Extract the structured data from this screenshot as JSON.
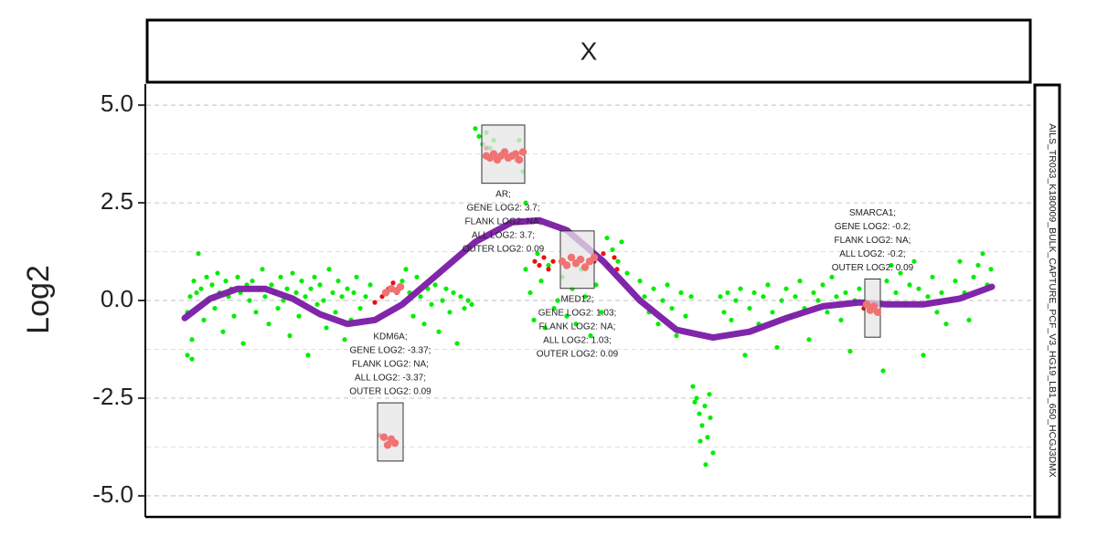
{
  "chart_data": {
    "type": "scatter",
    "strip_title": "X",
    "side_label": "AILS_TR033_K180009_BULK_CAPTURE_PCF_V3_HG19_LB1_650_HCGJ3DMX",
    "y_label": "Log2",
    "xlim": [
      0,
      968
    ],
    "ylim": [
      -5.54,
      5.54
    ],
    "yticks": [
      {
        "value": 5,
        "label": "5.0"
      },
      {
        "value": 2.5,
        "label": "2.5"
      },
      {
        "value": 0,
        "label": "0.0"
      },
      {
        "value": -2.5,
        "label": "-2.5"
      },
      {
        "value": -5,
        "label": "-5.0"
      }
    ],
    "minor_yticks": [
      3.75,
      1.25,
      -1.25,
      -3.75
    ],
    "grid": true,
    "points": [
      {
        "color": "#00ee00",
        "x": [
          45,
          45,
          48,
          50,
          50,
          52,
          55,
          57,
          60,
          63,
          66,
          68,
          72,
          75,
          78,
          80,
          84,
          87,
          90,
          93,
          96,
          100,
          103,
          106,
          110,
          113,
          116,
          120,
          124,
          127,
          130,
          134,
          137,
          140,
          144,
          147,
          150,
          154,
          157,
          160,
          164,
          167,
          170,
          174,
          177,
          180,
          184,
          187,
          190,
          194,
          197,
          200,
          204,
          207,
          210,
          214,
          217,
          220,
          224,
          227,
          230,
          234,
          240,
          245,
          280,
          284,
          288,
          292,
          296,
          300,
          304,
          308,
          312,
          316,
          320,
          324,
          328,
          332,
          336,
          340,
          344,
          348,
          352,
          356,
          360,
          364,
          368,
          372,
          376,
          380,
          408,
          412,
          415,
          415,
          420,
          424,
          428,
          432,
          436,
          440,
          446,
          450,
          455,
          460,
          466,
          470,
          476,
          480,
          486,
          492,
          498,
          504,
          510,
          516,
          520,
          526,
          540,
          545,
          550,
          555,
          560,
          565,
          570,
          575,
          580,
          585,
          590,
          596,
          598,
          602,
          605,
          608,
          611,
          614,
          617,
          620,
          612,
          606,
          600,
          616,
          628,
          632,
          636,
          640,
          645,
          650,
          655,
          660,
          665,
          670,
          675,
          680,
          685,
          690,
          695,
          700,
          705,
          710,
          715,
          720,
          725,
          730,
          735,
          740,
          745,
          750,
          755,
          760,
          765,
          770,
          775,
          780,
          785,
          806,
          810,
          815,
          820,
          825,
          830,
          835,
          840,
          845,
          850,
          855,
          860,
          865,
          870,
          875,
          880,
          885,
          890,
          895,
          900,
          905,
          910,
          915,
          920,
          924
        ],
        "y": [
          -0.3,
          -1.4,
          0.1,
          -1.0,
          -1.5,
          0.5,
          0.2,
          1.2,
          0.3,
          -0.5,
          0.6,
          0.0,
          0.4,
          -0.2,
          0.7,
          0.2,
          -0.8,
          0.5,
          0.1,
          0.3,
          -0.4,
          0.6,
          0.2,
          -1.1,
          0.4,
          0.0,
          0.5,
          -0.3,
          0.3,
          0.8,
          0.1,
          -0.6,
          0.4,
          0.2,
          -0.2,
          0.6,
          0.0,
          0.3,
          -0.9,
          0.7,
          0.2,
          -0.4,
          0.5,
          0.1,
          -1.4,
          0.3,
          0.6,
          -0.1,
          0.4,
          0.0,
          -0.7,
          0.8,
          0.2,
          -0.3,
          0.5,
          0.1,
          -1.0,
          0.3,
          -0.5,
          0.2,
          0.6,
          -0.2,
          0.1,
          0.4,
          0.5,
          0.8,
          0.2,
          -0.4,
          0.6,
          0.1,
          -0.6,
          0.3,
          -0.1,
          0.4,
          -0.8,
          0.0,
          0.3,
          -0.3,
          0.2,
          -1.1,
          0.1,
          -0.2,
          0.0,
          -0.1,
          4.4,
          4.2,
          4.0,
          4.3,
          3.9,
          4.1,
          4.1,
          3.3,
          2.5,
          0.8,
          0.2,
          -0.5,
          1.2,
          0.5,
          -0.7,
          0.9,
          -0.2,
          0.0,
          0.6,
          -0.4,
          0.3,
          -0.6,
          0.8,
          0.1,
          -0.9,
          0.4,
          -0.3,
          1.6,
          1.3,
          1.0,
          1.5,
          0.7,
          0.5,
          0.1,
          -0.3,
          0.3,
          -0.6,
          0.0,
          0.4,
          -0.2,
          -0.9,
          0.2,
          -0.4,
          0.1,
          -2.2,
          -2.5,
          -2.9,
          -3.2,
          -2.7,
          -3.5,
          -3.0,
          -3.9,
          -4.2,
          -3.6,
          -2.6,
          -2.4,
          0.1,
          -0.3,
          0.2,
          -0.5,
          0.0,
          0.3,
          -1.4,
          -0.2,
          0.2,
          -0.6,
          0.1,
          0.4,
          -0.3,
          -1.2,
          0.0,
          0.3,
          -0.4,
          0.1,
          0.5,
          -0.2,
          -1.0,
          0.2,
          0.0,
          0.4,
          -0.3,
          0.6,
          0.1,
          -0.5,
          0.2,
          -1.3,
          0.0,
          0.3,
          -0.2,
          -1.8,
          0.5,
          0.9,
          0.2,
          0.7,
          -0.1,
          0.4,
          1.0,
          0.3,
          -1.4,
          0.1,
          0.6,
          -0.3,
          0.2,
          -0.6,
          0.0,
          0.5,
          1.0,
          0.2,
          -0.5,
          0.6,
          0.9,
          1.2,
          0.4,
          0.8
        ]
      },
      {
        "color": "#e81010",
        "x": [
          250,
          258,
          265,
          270,
          274,
          278,
          425,
          430,
          435,
          440,
          445,
          480,
          490,
          500,
          505,
          512,
          515,
          372,
          405,
          255,
          785
        ],
        "y": [
          -0.05,
          0.1,
          0.3,
          0.45,
          0.2,
          0.35,
          1.0,
          0.9,
          1.1,
          0.8,
          1.0,
          0.9,
          1.0,
          1.2,
          0.9,
          1.1,
          0.8,
          3.9,
          3.6,
          -3.45,
          -0.2
        ]
      },
      {
        "color": "#f07272",
        "x": [
          372,
          376,
          380,
          384,
          388,
          392,
          396,
          400,
          404,
          408,
          412,
          455,
          460,
          465,
          470,
          475,
          480,
          485,
          490,
          260,
          264,
          268,
          272,
          788,
          792,
          796,
          800,
          262,
          268,
          274,
          278
        ],
        "y": [
          3.7,
          3.65,
          3.75,
          3.6,
          3.7,
          3.8,
          3.65,
          3.7,
          3.75,
          3.6,
          3.8,
          1.0,
          0.9,
          1.1,
          0.95,
          1.05,
          0.85,
          1.0,
          1.1,
          -3.5,
          -3.7,
          -3.55,
          -3.65,
          -0.1,
          -0.25,
          -0.15,
          -0.3,
          0.2,
          0.3,
          0.25,
          0.35
        ]
      }
    ],
    "trend": {
      "color": "#7a1aa5",
      "x": [
        42,
        70,
        100,
        130,
        160,
        190,
        220,
        250,
        280,
        320,
        360,
        400,
        430,
        460,
        500,
        540,
        580,
        620,
        660,
        700,
        740,
        780,
        810,
        850,
        890,
        925
      ],
      "y": [
        -0.45,
        0.05,
        0.3,
        0.3,
        0.05,
        -0.35,
        -0.6,
        -0.5,
        -0.1,
        0.7,
        1.5,
        2.0,
        2.05,
        1.8,
        1.0,
        0.0,
        -0.75,
        -0.95,
        -0.8,
        -0.45,
        -0.15,
        -0.05,
        -0.1,
        -0.1,
        0.05,
        0.35
      ]
    },
    "genes": [
      {
        "x": [
          367,
          414
        ],
        "y": [
          3.0,
          4.49
        ],
        "label_side": "below",
        "labels": [
          "AR;",
          "GENE LOG2: 3.7;",
          "FLANK LOG2: NA;",
          "ALL LOG2: 3.7;",
          "OUTER LOG2: 0.09"
        ]
      },
      {
        "x": [
          453,
          490
        ],
        "y": [
          0.31,
          1.78
        ],
        "label_side": "below",
        "labels": [
          "MED12;",
          "GENE LOG2: 1.03;",
          "FLANK LOG2: NA;",
          "ALL LOG2: 1.03;",
          "OUTER LOG2: 0.09"
        ]
      },
      {
        "x": [
          253,
          281
        ],
        "y": [
          -4.11,
          -2.62
        ],
        "label_side": "above",
        "labels": [
          "KDM6A;",
          "GENE LOG2: -3.37;",
          "FLANK LOG2: NA;",
          "ALL LOG2: -3.37;",
          "OUTER LOG2: 0.09"
        ]
      },
      {
        "x": [
          786,
          803
        ],
        "y": [
          -0.94,
          0.55
        ],
        "label_side": "above",
        "labels": [
          "SMARCA1;",
          "GENE LOG2: -0.2;",
          "FLANK LOG2: NA;",
          "ALL LOG2: -0.2;",
          "OUTER LOG2: 0.09"
        ]
      }
    ]
  }
}
